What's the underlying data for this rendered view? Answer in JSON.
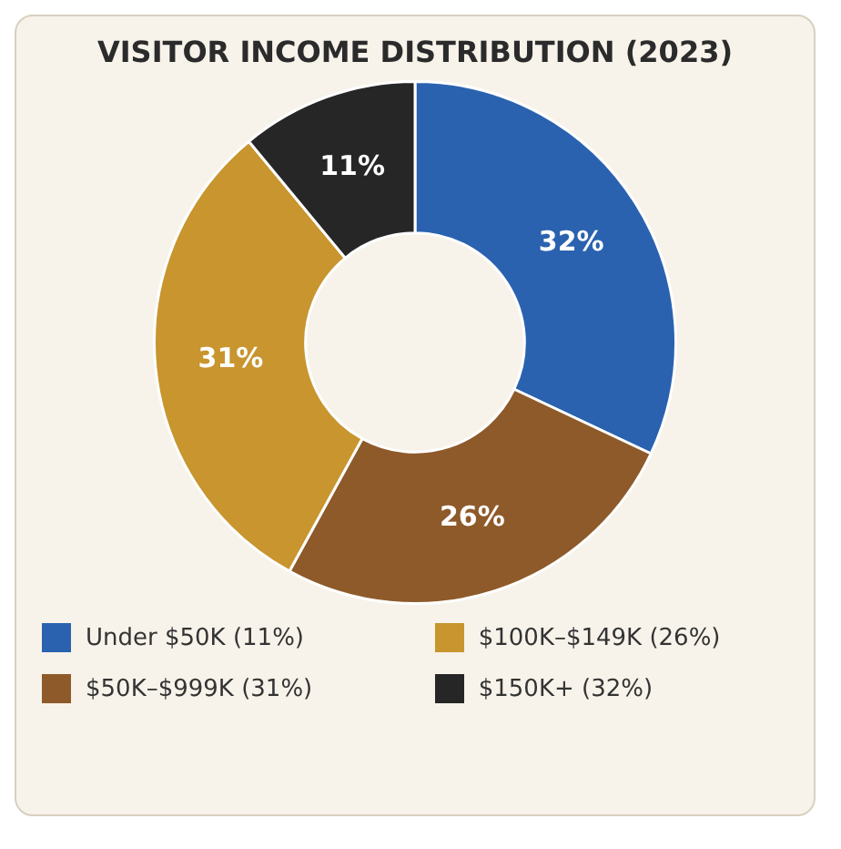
{
  "chart_data": {
    "type": "donut",
    "title": "VISITOR INCOME DISTRIBUTION (2023)",
    "categories": [
      "Under $50K (11%)",
      "$50K–$999K (31%)",
      "$100K–$149K (26%)",
      "$150K+ (32%)"
    ],
    "values": [
      32,
      26,
      31,
      11
    ],
    "value_labels": [
      "32%",
      "26%",
      "31%",
      "11%"
    ],
    "colors": [
      "#2a62b0",
      "#8e5a2a",
      "#c8952e",
      "#262626"
    ],
    "legend": "bottom"
  }
}
